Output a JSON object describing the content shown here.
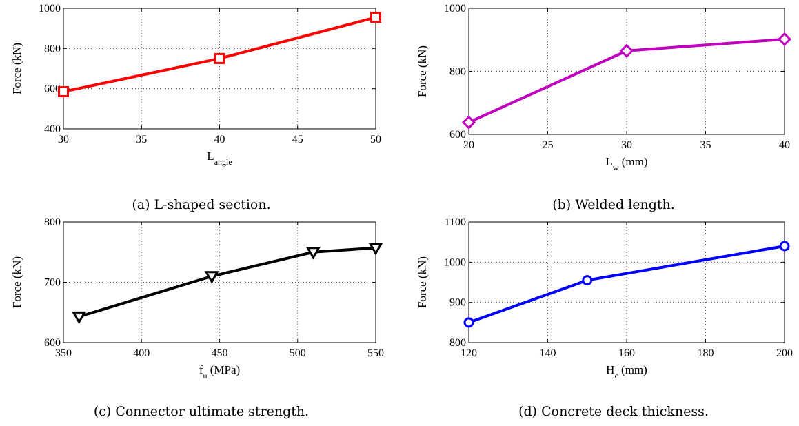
{
  "figure": {
    "captions": [
      "(a) L-shaped section.",
      "(b) Welded length.",
      "(c) Connector ultimate strength.",
      "(d) Concrete deck thickness."
    ]
  },
  "chart_data": [
    {
      "type": "line",
      "title": "",
      "xlabel": "L",
      "xlabel_sub": "angle",
      "xlabel_unit": "",
      "ylabel": "Force (kN)",
      "xlim": [
        30,
        50
      ],
      "ylim": [
        400,
        1000
      ],
      "xticks": [
        "30",
        "35",
        "40",
        "45",
        "50"
      ],
      "yticks": [
        "400",
        "600",
        "800",
        "1000"
      ],
      "grid": true,
      "marker": "square",
      "color": "#ff0000",
      "x": [
        30,
        40,
        50
      ],
      "y": [
        585,
        750,
        955
      ]
    },
    {
      "type": "line",
      "title": "",
      "xlabel": "L",
      "xlabel_sub": "w",
      "xlabel_unit": " (mm)",
      "ylabel": "Force (kN)",
      "xlim": [
        20,
        40
      ],
      "ylim": [
        600,
        1000
      ],
      "xticks": [
        "20",
        "25",
        "30",
        "35",
        "40"
      ],
      "yticks": [
        "600",
        "800",
        "1000"
      ],
      "grid": true,
      "marker": "diamond",
      "color": "#bf00bf",
      "x": [
        20,
        30,
        40
      ],
      "y": [
        638,
        865,
        902
      ]
    },
    {
      "type": "line",
      "title": "",
      "xlabel": "f",
      "xlabel_sub": "u",
      "xlabel_unit": " (MPa)",
      "ylabel": "Force (kN)",
      "xlim": [
        350,
        550
      ],
      "ylim": [
        600,
        800
      ],
      "xticks": [
        "350",
        "400",
        "450",
        "500",
        "550"
      ],
      "yticks": [
        "600",
        "700",
        "800"
      ],
      "grid": true,
      "marker": "triangle-down",
      "color": "#000000",
      "x": [
        360,
        445,
        510,
        550
      ],
      "y": [
        643,
        710,
        750,
        757
      ]
    },
    {
      "type": "line",
      "title": "",
      "xlabel": "H",
      "xlabel_sub": "c",
      "xlabel_unit": " (mm)",
      "ylabel": "Force (kN)",
      "xlim": [
        120,
        200
      ],
      "ylim": [
        800,
        1100
      ],
      "xticks": [
        "120",
        "140",
        "160",
        "180",
        "200"
      ],
      "yticks": [
        "800",
        "900",
        "1000",
        "1100"
      ],
      "grid": true,
      "marker": "circle",
      "color": "#0000ff",
      "x": [
        120,
        150,
        200
      ],
      "y": [
        850,
        955,
        1040
      ]
    }
  ]
}
